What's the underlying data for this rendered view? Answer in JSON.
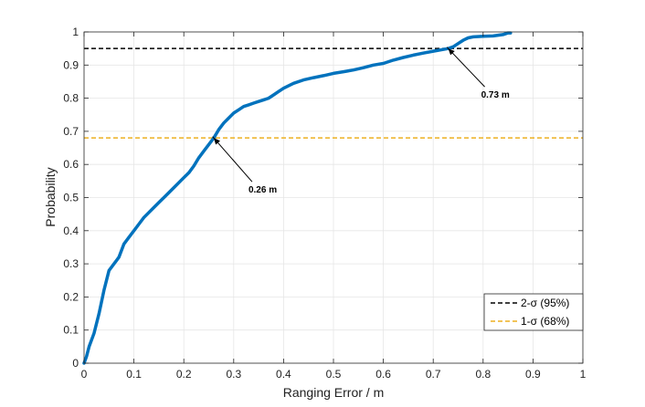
{
  "chart_data": {
    "type": "line",
    "title": "",
    "xlabel": "Ranging Error / m",
    "ylabel": "Probability",
    "xlim": [
      0,
      1
    ],
    "ylim": [
      0,
      1
    ],
    "xticks": [
      0,
      0.1,
      0.2,
      0.3,
      0.4,
      0.5,
      0.6,
      0.7,
      0.8,
      0.9,
      1
    ],
    "yticks": [
      0,
      0.1,
      0.2,
      0.3,
      0.4,
      0.5,
      0.6,
      0.7,
      0.8,
      0.9,
      1
    ],
    "xtick_labels": [
      "0",
      "0.1",
      "0.2",
      "0.3",
      "0.4",
      "0.5",
      "0.6",
      "0.7",
      "0.8",
      "0.9",
      "1"
    ],
    "ytick_labels": [
      "0",
      "0.1",
      "0.2",
      "0.3",
      "0.4",
      "0.5",
      "0.6",
      "0.7",
      "0.8",
      "0.9",
      "1"
    ],
    "grid": true,
    "legend_position": "bottom-right",
    "series": [
      {
        "color": "#0072BD",
        "x": [
          0,
          0.005,
          0.01,
          0.02,
          0.03,
          0.04,
          0.05,
          0.06,
          0.07,
          0.08,
          0.09,
          0.1,
          0.11,
          0.12,
          0.13,
          0.14,
          0.15,
          0.16,
          0.17,
          0.18,
          0.19,
          0.2,
          0.21,
          0.22,
          0.23,
          0.24,
          0.25,
          0.26,
          0.27,
          0.28,
          0.29,
          0.3,
          0.31,
          0.32,
          0.33,
          0.34,
          0.35,
          0.36,
          0.37,
          0.38,
          0.39,
          0.4,
          0.42,
          0.44,
          0.46,
          0.48,
          0.5,
          0.52,
          0.54,
          0.56,
          0.58,
          0.6,
          0.62,
          0.64,
          0.66,
          0.68,
          0.7,
          0.72,
          0.73,
          0.74,
          0.75,
          0.76,
          0.77,
          0.78,
          0.8,
          0.82,
          0.84,
          0.85,
          0.855
        ],
        "y": [
          0,
          0.02,
          0.05,
          0.09,
          0.15,
          0.22,
          0.28,
          0.3,
          0.32,
          0.36,
          0.38,
          0.4,
          0.42,
          0.44,
          0.455,
          0.47,
          0.485,
          0.5,
          0.515,
          0.53,
          0.545,
          0.56,
          0.575,
          0.595,
          0.62,
          0.64,
          0.66,
          0.68,
          0.705,
          0.725,
          0.74,
          0.755,
          0.765,
          0.775,
          0.78,
          0.785,
          0.79,
          0.795,
          0.8,
          0.81,
          0.82,
          0.83,
          0.845,
          0.855,
          0.862,
          0.868,
          0.875,
          0.88,
          0.885,
          0.892,
          0.9,
          0.905,
          0.915,
          0.923,
          0.93,
          0.936,
          0.942,
          0.947,
          0.95,
          0.955,
          0.965,
          0.975,
          0.982,
          0.985,
          0.987,
          0.988,
          0.992,
          0.997,
          0.997
        ]
      }
    ],
    "reference_lines": [
      {
        "name": "2-σ  (95%)",
        "y": 0.95,
        "color": "#000000",
        "dash": true
      },
      {
        "name": "1-σ  (68%)",
        "y": 0.68,
        "color": "#EDB120",
        "dash": true
      }
    ],
    "annotations": [
      {
        "text": "0.73 m",
        "x": 0.73,
        "y": 0.95
      },
      {
        "text": "0.26 m",
        "x": 0.26,
        "y": 0.68
      }
    ]
  }
}
